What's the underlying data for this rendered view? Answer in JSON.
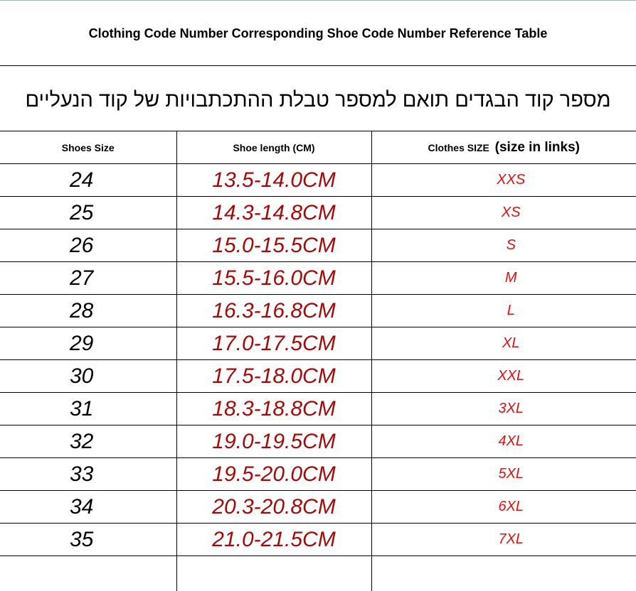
{
  "header": {
    "title": "Clothing Code Number Corresponding Shoe Code Number Reference Table",
    "subtitle": "מספר קוד הבגדים תואם למספר טבלת ההתכתבויות של קוד הנעליים"
  },
  "table": {
    "columns": [
      "Shoes Size",
      "Shoe length (CM)",
      "Clothes SIZE"
    ],
    "column_note": "(size in links)",
    "rows": [
      [
        "24",
        "13.5-14.0CM",
        "XXS"
      ],
      [
        "25",
        "14.3-14.8CM",
        "XS"
      ],
      [
        "26",
        "15.0-15.5CM",
        "S"
      ],
      [
        "27",
        "15.5-16.0CM",
        "M"
      ],
      [
        "28",
        "16.3-16.8CM",
        "L"
      ],
      [
        "29",
        "17.0-17.5CM",
        "XL"
      ],
      [
        "30",
        "17.5-18.0CM",
        "XXL"
      ],
      [
        "31",
        "18.3-18.8CM",
        "3XL"
      ],
      [
        "32",
        "19.0-19.5CM",
        "4XL"
      ],
      [
        "33",
        "19.5-20.0CM",
        "5XL"
      ],
      [
        "34",
        "20.3-20.8CM",
        "6XL"
      ],
      [
        "35",
        "21.0-21.5CM",
        "7XL"
      ]
    ]
  }
}
